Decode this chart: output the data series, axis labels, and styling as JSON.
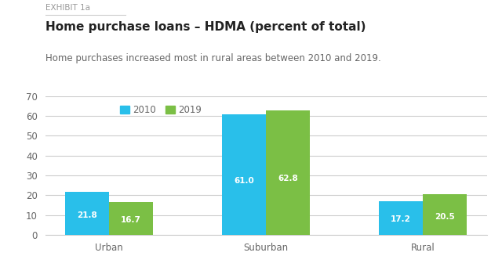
{
  "exhibit_label": "EXHIBIT 1a",
  "title": "Home purchase loans – HDMA (percent of total)",
  "subtitle": "Home purchases increased most in rural areas between 2010 and 2019.",
  "categories": [
    "Urban",
    "Suburban",
    "Rural"
  ],
  "values_2010": [
    21.8,
    61.0,
    17.2
  ],
  "values_2019": [
    16.7,
    62.8,
    20.5
  ],
  "color_2010": "#29BFEA",
  "color_2019": "#7BBF45",
  "bar_label_color": "#ffffff",
  "bar_label_fontsize": 7.5,
  "legend_labels": [
    "2010",
    "2019"
  ],
  "ylim": [
    0,
    70
  ],
  "yticks": [
    0,
    10,
    20,
    30,
    40,
    50,
    60,
    70
  ],
  "bar_width": 0.28,
  "background_color": "#ffffff",
  "grid_color": "#cccccc",
  "axis_label_color": "#666666",
  "exhibit_color": "#999999",
  "title_color": "#222222",
  "subtitle_color": "#666666",
  "title_fontsize": 11,
  "subtitle_fontsize": 8.5,
  "exhibit_fontsize": 7.5,
  "tick_fontsize": 8.5,
  "legend_fontsize": 8.5
}
